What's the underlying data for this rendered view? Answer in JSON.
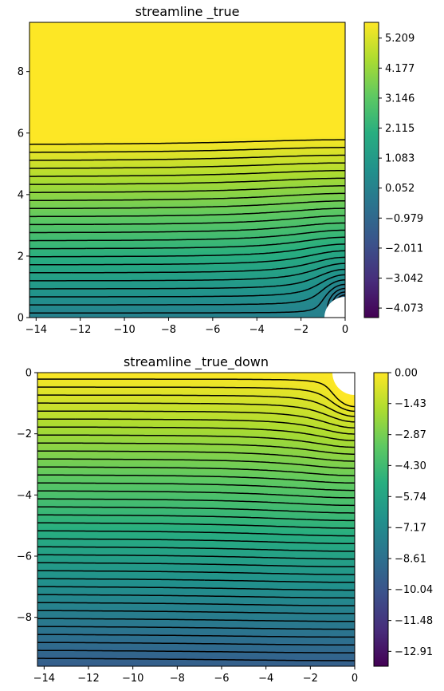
{
  "chart_data": [
    {
      "type": "contour",
      "title": "streamline _true",
      "xlabel": "",
      "ylabel": "",
      "xlim": [
        -14.3,
        0
      ],
      "ylim": [
        0,
        9.6
      ],
      "xticks": [
        -14,
        -12,
        -10,
        -8,
        -6,
        -4,
        -2,
        0
      ],
      "yticks": [
        0,
        2,
        4,
        6,
        8
      ],
      "xtick_labels": [
        "−14",
        "−12",
        "−10",
        "−8",
        "−6",
        "−4",
        "−2",
        "0"
      ],
      "ytick_labels": [
        "0",
        "2",
        "4",
        "6",
        "8"
      ],
      "field": "streamfunction, uniform flow past a cylinder of radius 1 at the origin",
      "obstacle": {
        "shape": "circle",
        "center": [
          0,
          0
        ],
        "radius": 1
      },
      "colormap": "viridis",
      "level_range": [
        -4.4,
        5.75
      ],
      "level_step": 0.26,
      "negative_levels_style": "dashed",
      "colorbar": {
        "range": [
          -4.4,
          5.75
        ],
        "ticks": [
          -4.073,
          -3.042,
          -2.011,
          -0.979,
          0.052,
          1.083,
          2.115,
          3.146,
          4.177,
          5.209
        ],
        "tick_labels": [
          "−4.073",
          "−3.042",
          "−2.011",
          "−0.979",
          "0.052",
          "1.083",
          "2.115",
          "3.146",
          "4.177",
          "5.209"
        ]
      }
    },
    {
      "type": "contour",
      "title": "streamline _true_down",
      "xlabel": "",
      "ylabel": "",
      "xlim": [
        -14.3,
        0
      ],
      "ylim": [
        -9.6,
        0
      ],
      "xticks": [
        -14,
        -12,
        -10,
        -8,
        -6,
        -4,
        -2,
        0
      ],
      "yticks": [
        0,
        -2,
        -4,
        -6,
        -8
      ],
      "xtick_labels": [
        "−14",
        "−12",
        "−10",
        "−8",
        "−6",
        "−4",
        "−2",
        "0"
      ],
      "ytick_labels": [
        "0",
        "−2",
        "−4",
        "−6",
        "−8"
      ],
      "field": "streamfunction, lower half of flow past a cylinder of radius 1 at the origin",
      "obstacle": {
        "shape": "circle",
        "center": [
          0,
          0
        ],
        "radius": 1
      },
      "colormap": "viridis",
      "level_range": [
        -13.6,
        0
      ],
      "level_step": 0.26,
      "negative_levels_style": "dashed",
      "colorbar": {
        "range": [
          -13.6,
          0
        ],
        "ticks": [
          0.0,
          -1.43,
          -2.87,
          -4.3,
          -5.74,
          -7.17,
          -8.61,
          -10.04,
          -11.48,
          -12.91
        ],
        "tick_labels": [
          "0.00",
          "−1.43",
          "−2.87",
          "−4.30",
          "−5.74",
          "−7.17",
          "−8.61",
          "−10.04",
          "−11.48",
          "−12.91"
        ]
      }
    }
  ]
}
